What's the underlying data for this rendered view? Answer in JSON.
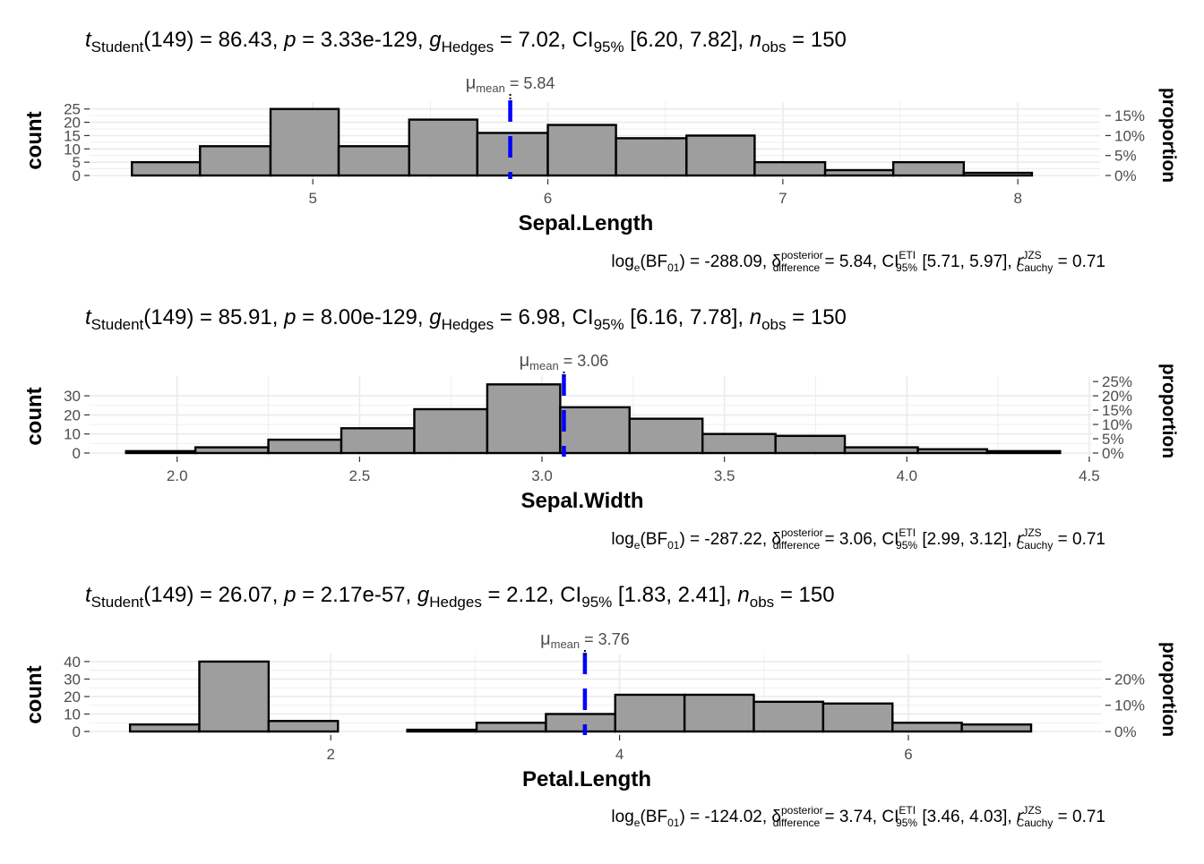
{
  "chart_data": [
    {
      "type": "bar",
      "subtitle": {
        "t_label": "t",
        "t_sub": "Student",
        "t_value": "(149) = 86.43, ",
        "p_label": "p",
        "p_value": " = 3.33e-129, ",
        "g_label": "g",
        "g_sub": "Hedges",
        "g_value": " = 7.02, CI",
        "ci_sub": "95%",
        "ci_value": " [6.20, 7.82], ",
        "n_label": "n",
        "n_sub": "obs",
        "n_value": " = 150"
      },
      "caption": {
        "lead": "log",
        "lead_sub": "e",
        "bf_open": "(BF",
        "bf_sub": "01",
        "bf_close": ")",
        "bf_value": " = -288.09, ",
        "delta_symbol": "δ",
        "delta_sup": "posterior",
        "delta_sub": "difference",
        "delta_value": " = 5.84, CI",
        "ci_sup": "ETI",
        "ci_sub": "95%",
        "ci_value": " [5.71, 5.97], ",
        "r_label": "r",
        "r_sup": "JZS",
        "r_sub": "Cauchy",
        "r_value": " = 0.71"
      },
      "mean_label": {
        "symbol": "μ",
        "sub": "mean",
        "value": " = 5.84"
      },
      "mean": 5.84,
      "xlabel": "Sepal.Length",
      "ylabel": "count",
      "y2label": "proportion",
      "x_ticks": [
        5,
        6,
        7,
        8
      ],
      "x_tick_labels": [
        "5",
        "6",
        "7",
        "8"
      ],
      "y_ticks": [
        0,
        5,
        10,
        15,
        20,
        25
      ],
      "y_tick_labels": [
        "0",
        "5",
        "10",
        "15",
        "20",
        "25"
      ],
      "y2_ticks": [
        0,
        0.05,
        0.1,
        0.15
      ],
      "y2_tick_labels": [
        "0%",
        "5%",
        "10%",
        "15%"
      ],
      "n_total": 150,
      "xlim": [
        4.05,
        8.35
      ],
      "ylim": [
        0,
        26.25
      ],
      "bin_edges": [
        4.23,
        4.52,
        4.82,
        5.11,
        5.41,
        5.7,
        6.0,
        6.29,
        6.59,
        6.88,
        7.18,
        7.47,
        7.77,
        8.06
      ],
      "values": [
        5,
        11,
        25,
        11,
        21,
        16,
        19,
        14,
        15,
        5,
        2,
        5,
        1
      ],
      "grid": true
    },
    {
      "type": "bar",
      "subtitle": {
        "t_label": "t",
        "t_sub": "Student",
        "t_value": "(149) = 85.91, ",
        "p_label": "p",
        "p_value": " = 8.00e-129, ",
        "g_label": "g",
        "g_sub": "Hedges",
        "g_value": " = 6.98, CI",
        "ci_sub": "95%",
        "ci_value": " [6.16, 7.78], ",
        "n_label": "n",
        "n_sub": "obs",
        "n_value": " = 150"
      },
      "caption": {
        "lead": "log",
        "lead_sub": "e",
        "bf_open": "(BF",
        "bf_sub": "01",
        "bf_close": ")",
        "bf_value": " = -287.22, ",
        "delta_symbol": "δ",
        "delta_sup": "posterior",
        "delta_sub": "difference",
        "delta_value": " = 3.06, CI",
        "ci_sup": "ETI",
        "ci_sub": "95%",
        "ci_value": " [2.99, 3.12], ",
        "r_label": "r",
        "r_sup": "JZS",
        "r_sub": "Cauchy",
        "r_value": " = 0.71"
      },
      "mean_label": {
        "symbol": "μ",
        "sub": "mean",
        "value": " = 3.06"
      },
      "mean": 3.06,
      "xlabel": "Sepal.Width",
      "ylabel": "count",
      "y2label": "proportion",
      "x_ticks": [
        2.0,
        2.5,
        3.0,
        3.5,
        4.0,
        4.5
      ],
      "x_tick_labels": [
        "2.0",
        "2.5",
        "3.0",
        "3.5",
        "4.0",
        "4.5"
      ],
      "y_ticks": [
        0,
        10,
        20,
        30
      ],
      "y_tick_labels": [
        "0",
        "10",
        "20",
        "30"
      ],
      "y2_ticks": [
        0,
        0.05,
        0.1,
        0.15,
        0.2,
        0.25
      ],
      "y2_tick_labels": [
        "0%",
        "5%",
        "10%",
        "15%",
        "20%",
        "25%"
      ],
      "n_total": 150,
      "xlim": [
        1.76,
        4.51
      ],
      "ylim": [
        0,
        38.5
      ],
      "bin_edges": [
        1.86,
        2.05,
        2.25,
        2.45,
        2.65,
        2.85,
        3.05,
        3.24,
        3.44,
        3.64,
        3.83,
        4.03,
        4.22,
        4.42
      ],
      "values": [
        1,
        3,
        7,
        13,
        23,
        36,
        24,
        18,
        10,
        9,
        3,
        2,
        1
      ],
      "grid": true
    },
    {
      "type": "bar",
      "subtitle": {
        "t_label": "t",
        "t_sub": "Student",
        "t_value": "(149) = 26.07, ",
        "p_label": "p",
        "p_value": " = 2.17e-57, ",
        "g_label": "g",
        "g_sub": "Hedges",
        "g_value": " = 2.12, CI",
        "ci_sub": "95%",
        "ci_value": " [1.83, 2.41], ",
        "n_label": "n",
        "n_sub": "obs",
        "n_value": " = 150"
      },
      "caption": {
        "lead": "log",
        "lead_sub": "e",
        "bf_open": "(BF",
        "bf_sub": "01",
        "bf_close": ")",
        "bf_value": " = -124.02, ",
        "delta_symbol": "δ",
        "delta_sup": "posterior",
        "delta_sub": "difference",
        "delta_value": " = 3.74, CI",
        "ci_sup": "ETI",
        "ci_sub": "95%",
        "ci_value": " [3.46, 4.03], ",
        "r_label": "r",
        "r_sup": "JZS",
        "r_sub": "Cauchy",
        "r_value": " = 0.71"
      },
      "mean_label": {
        "symbol": "μ",
        "sub": "mean",
        "value": " = 3.76"
      },
      "mean": 3.76,
      "xlabel": "Petal.Length",
      "ylabel": "count",
      "y2label": "proportion",
      "x_ticks": [
        2,
        4,
        6
      ],
      "x_tick_labels": [
        "2",
        "4",
        "6"
      ],
      "y_ticks": [
        0,
        10,
        20,
        30,
        40
      ],
      "y_tick_labels": [
        "0",
        "10",
        "20",
        "30",
        "40"
      ],
      "y2_ticks": [
        0,
        0.1,
        0.2
      ],
      "y2_tick_labels": [
        "0%",
        "10%",
        "20%"
      ],
      "n_total": 150,
      "xlim": [
        0.33,
        7.34
      ],
      "ylim": [
        0,
        42
      ],
      "bin_edges": [
        0.61,
        1.09,
        1.57,
        2.05,
        2.53,
        3.01,
        3.49,
        3.97,
        4.45,
        4.93,
        5.41,
        5.89,
        6.37,
        6.85
      ],
      "values": [
        4,
        40,
        6,
        0,
        1,
        5,
        10,
        21,
        21,
        17,
        16,
        5,
        4
      ],
      "grid": true
    }
  ],
  "colors": {
    "bar_fill": "#9e9e9e",
    "bar_stroke": "#000000",
    "mean_line": "#0000ff",
    "grid": "#ebebeb",
    "text": "#1a1a1a",
    "tick_text": "#4d4d4d"
  }
}
